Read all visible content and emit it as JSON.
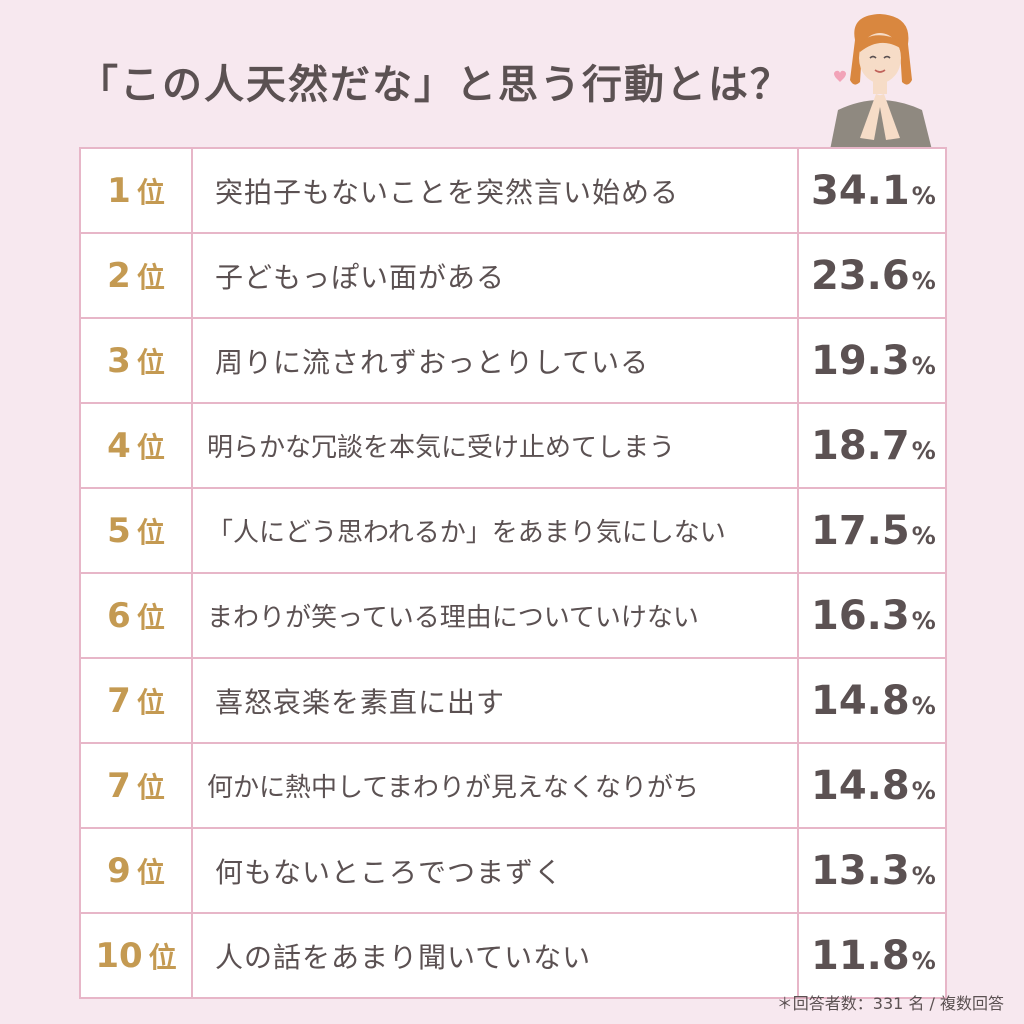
{
  "title": "「この人天然だな」と思う行動とは？",
  "chart_data": {
    "type": "table",
    "rank_unit": "位",
    "percent_unit": "%",
    "rows": [
      {
        "rank": "1",
        "label": "突拍子もないことを突然言い始める",
        "value": "34.1"
      },
      {
        "rank": "2",
        "label": "子どもっぽい面がある",
        "value": "23.6"
      },
      {
        "rank": "3",
        "label": "周りに流されずおっとりしている",
        "value": "19.3"
      },
      {
        "rank": "4",
        "label": "明らかな冗談を本気に受け止めてしまう",
        "value": "18.7"
      },
      {
        "rank": "5",
        "label": "「人にどう思われるか」をあまり気にしない",
        "value": "17.5"
      },
      {
        "rank": "6",
        "label": "まわりが笑っている理由についていけない",
        "value": "16.3"
      },
      {
        "rank": "7",
        "label": "喜怒哀楽を素直に出す",
        "value": "14.8"
      },
      {
        "rank": "7",
        "label": "何かに熱中してまわりが見えなくなりがち",
        "value": "14.8"
      },
      {
        "rank": "9",
        "label": "何もないところでつまずく",
        "value": "13.3"
      },
      {
        "rank": "10",
        "label": "人の話をあまり聞いていない",
        "value": "11.8"
      }
    ]
  },
  "footnote": "＊回答者数：331 名 / 複数回答",
  "colors": {
    "background": "#f7e8ef",
    "border": "#e7b6c8",
    "rank": "#c49a52",
    "text": "#5b5152"
  },
  "illustration": "woman-clasping-hands-icon"
}
